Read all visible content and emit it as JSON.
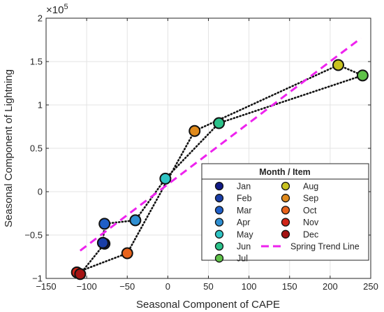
{
  "chart_data": {
    "type": "scatter",
    "title": "",
    "xlabel": "Seasonal Component of CAPE",
    "ylabel": "Seasonal Component of Lightning",
    "exponent_label": "×10",
    "exponent_power": "5",
    "xlim": [
      -150,
      250
    ],
    "ylim": [
      -1,
      2
    ],
    "xticks": [
      -150,
      -100,
      -50,
      0,
      50,
      100,
      150,
      200,
      250
    ],
    "yticks": [
      -1,
      -0.5,
      0,
      0.5,
      1,
      1.5,
      2
    ],
    "xtick_labels": [
      "−150",
      "−100",
      "−50",
      "0",
      "50",
      "100",
      "150",
      "200",
      "250"
    ],
    "ytick_labels": [
      "−1",
      "−0.5",
      "0",
      "0.5",
      "1",
      "1.5",
      "2"
    ],
    "grid": true,
    "legend_title": "Month / Item",
    "legend_position": "bottom-right",
    "points": [
      {
        "name": "Jan",
        "x": -78,
        "y": -0.6,
        "color": "#101a85"
      },
      {
        "name": "Feb",
        "x": -80,
        "y": -0.59,
        "color": "#1a3ea8"
      },
      {
        "name": "Mar",
        "x": -78,
        "y": -0.37,
        "color": "#1f5fc8"
      },
      {
        "name": "Apr",
        "x": -40,
        "y": -0.33,
        "color": "#2f8fd2"
      },
      {
        "name": "May",
        "x": -3,
        "y": 0.15,
        "color": "#2ec4c4"
      },
      {
        "name": "Jun",
        "x": 63,
        "y": 0.79,
        "color": "#2bc28a"
      },
      {
        "name": "Jul",
        "x": 240,
        "y": 1.34,
        "color": "#5fc248"
      },
      {
        "name": "Aug",
        "x": 210,
        "y": 1.46,
        "color": "#c8c220"
      },
      {
        "name": "Sep",
        "x": 33,
        "y": 0.7,
        "color": "#e08a1c"
      },
      {
        "name": "Oct",
        "x": -50,
        "y": -0.71,
        "color": "#e8631c"
      },
      {
        "name": "Nov",
        "x": -112,
        "y": -0.93,
        "color": "#d02418"
      },
      {
        "name": "Dec",
        "x": -108,
        "y": -0.95,
        "color": "#a41212"
      }
    ],
    "path_order": [
      "Jan",
      "Feb",
      "Mar",
      "Apr",
      "May",
      "Jun",
      "Jul",
      "Aug",
      "Sep",
      "Oct",
      "Nov",
      "Dec",
      "Jan"
    ],
    "trend_line": {
      "name": "Spring Trend Line",
      "x": [
        -108,
        238
      ],
      "y": [
        -0.68,
        1.77
      ],
      "color": "#ee22ee"
    }
  }
}
